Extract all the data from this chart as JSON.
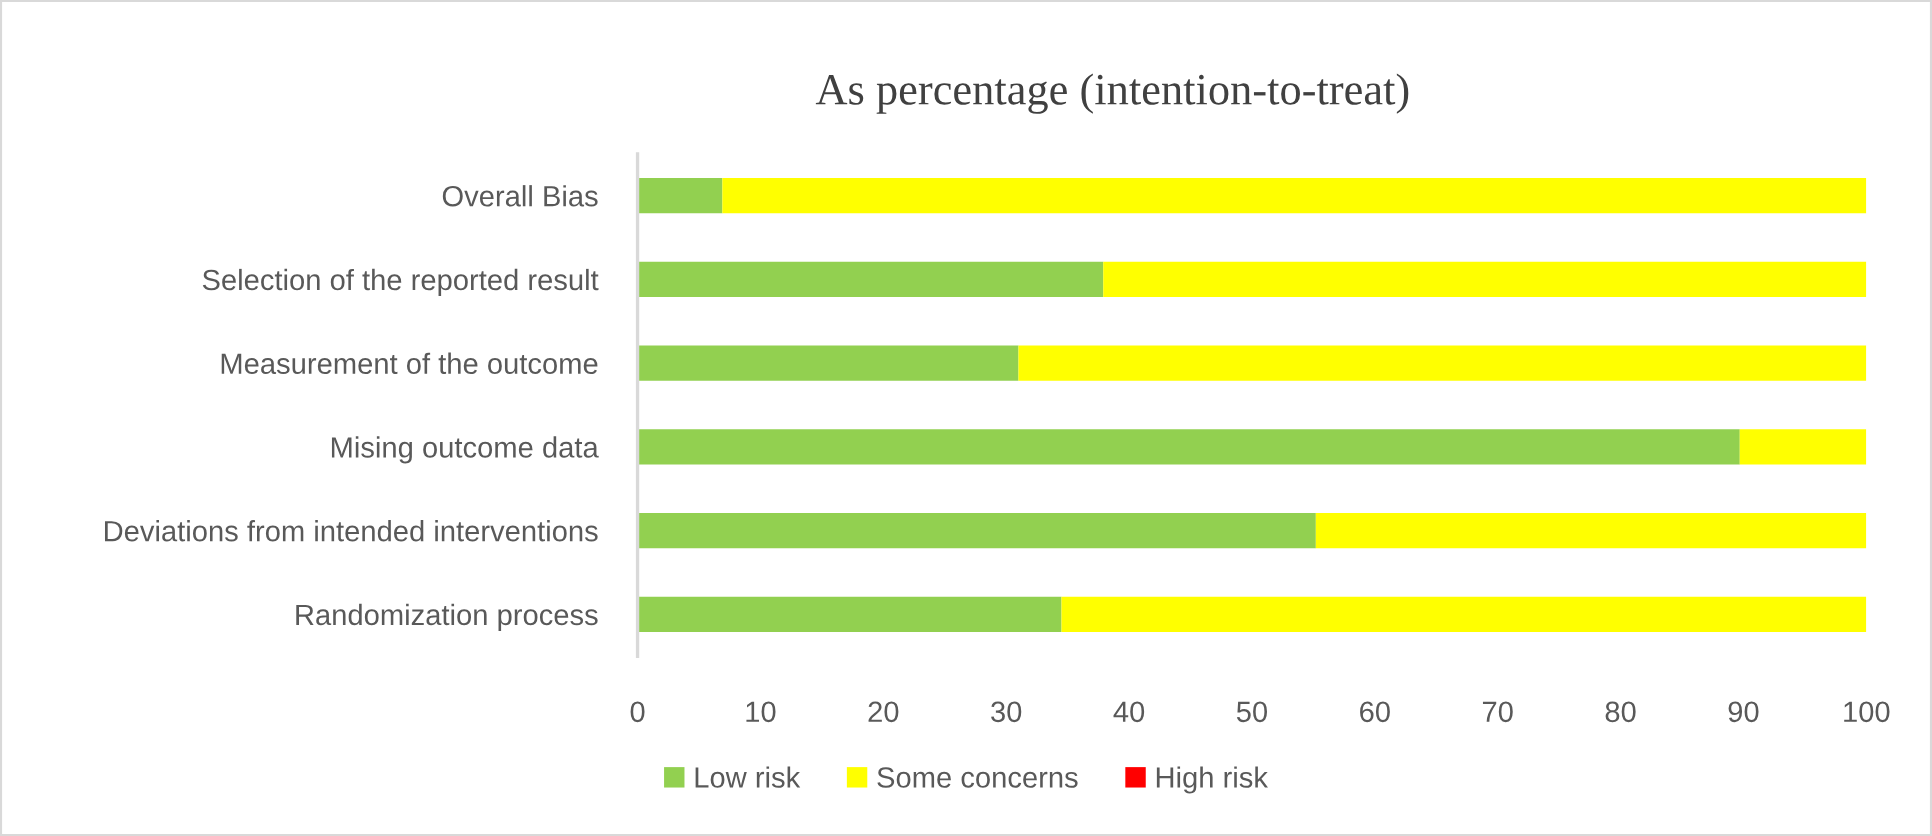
{
  "chart_data": {
    "type": "bar",
    "orientation": "horizontal",
    "stacked": true,
    "title": "As percentage (intention-to-treat)",
    "categories": [
      "Overall Bias",
      "Selection of the reported result",
      "Measurement of the outcome",
      "Mising outcome data",
      "Deviations from intended interventions",
      "Randomization process"
    ],
    "series": [
      {
        "name": "Low risk",
        "color": "#92d050",
        "values": [
          6.9,
          37.9,
          31.0,
          89.7,
          55.2,
          34.5
        ]
      },
      {
        "name": "Some concerns",
        "color": "#ffff00",
        "values": [
          93.1,
          62.1,
          69.0,
          10.3,
          44.8,
          65.5
        ]
      },
      {
        "name": "High risk",
        "color": "#ff0000",
        "values": [
          0,
          0,
          0,
          0,
          0,
          0
        ]
      }
    ],
    "xlim": [
      0,
      100
    ],
    "xticks": [
      0,
      10,
      20,
      30,
      40,
      50,
      60,
      70,
      80,
      90,
      100
    ],
    "legend": "bottom"
  }
}
